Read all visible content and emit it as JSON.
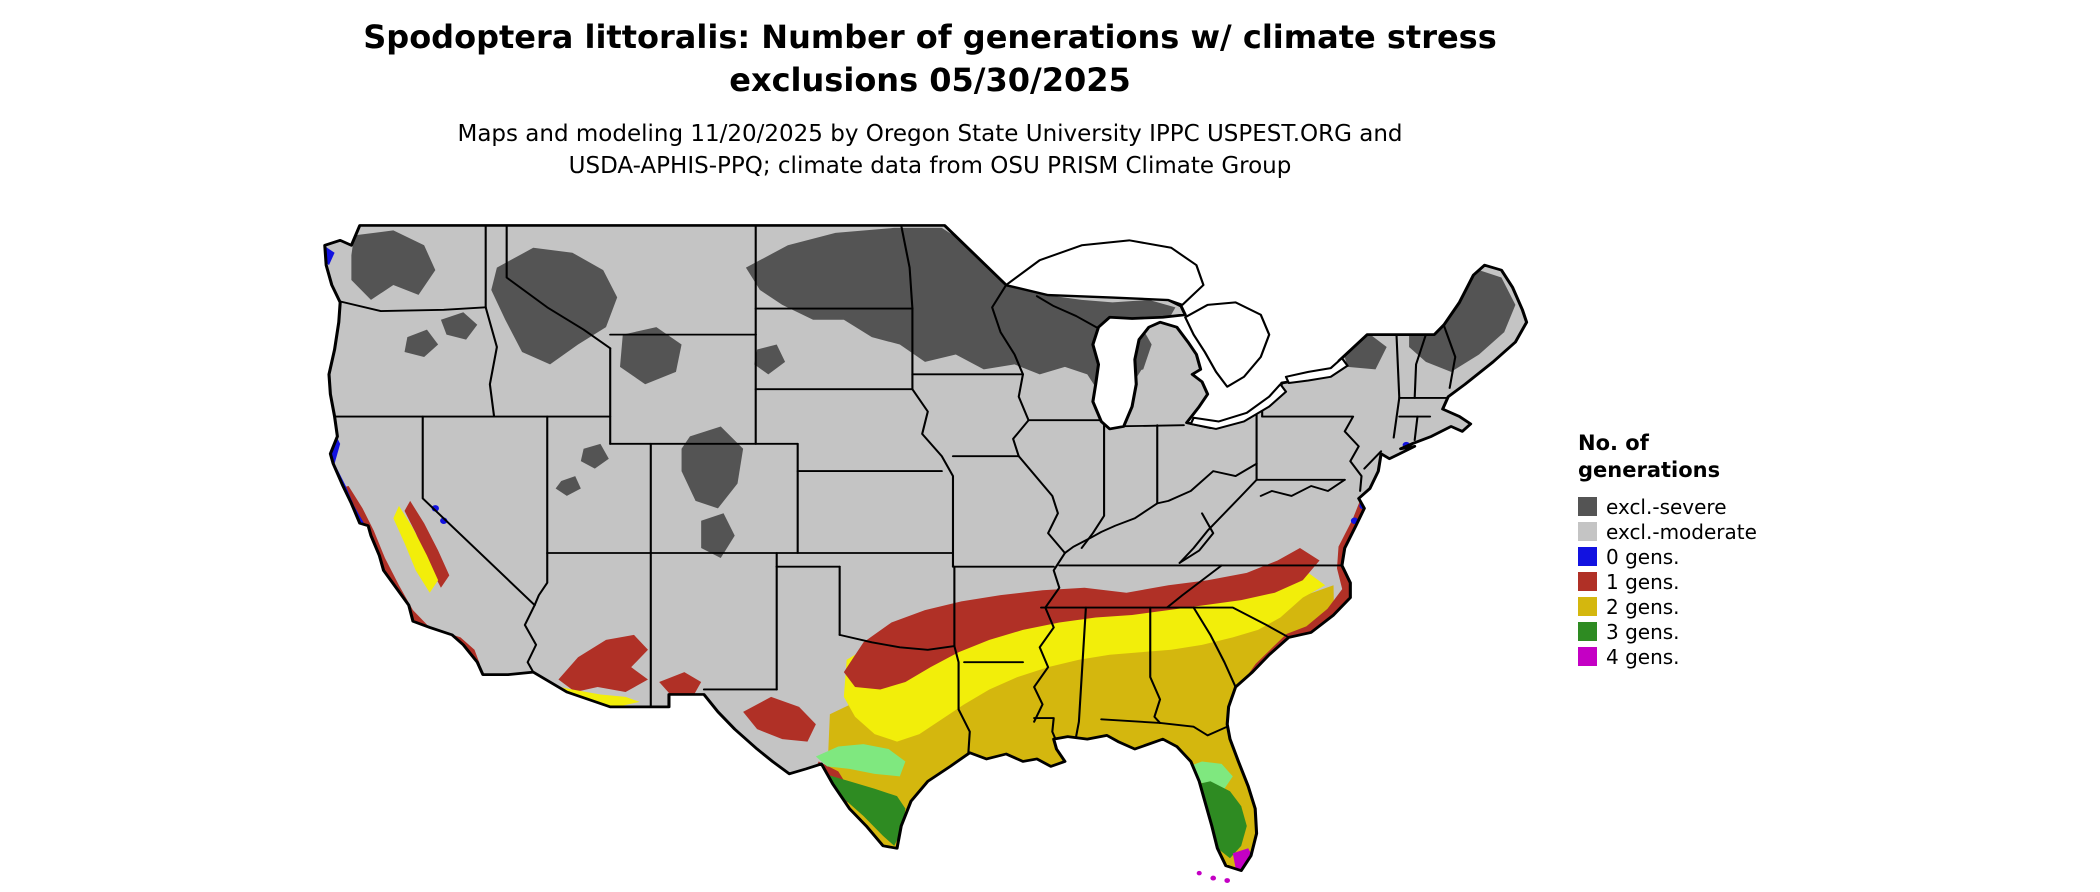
{
  "title": {
    "line1": "Spodoptera littoralis: Number of generations w/ climate stress",
    "line2": "exclusions 05/30/2025"
  },
  "subtitle": {
    "line1": "Maps and modeling 11/20/2025 by Oregon State University IPPC USPEST.ORG and",
    "line2": "USDA-APHIS-PPQ; climate data from OSU PRISM Climate Group"
  },
  "legend": {
    "title_line1": "No. of",
    "title_line2": "generations",
    "entries": [
      {
        "label": "excl.-severe",
        "color": "#545454"
      },
      {
        "label": "excl.-moderate",
        "color": "#c4c4c4"
      },
      {
        "label": "0 gens.",
        "color": "#1212e0"
      },
      {
        "label": "1 gens.",
        "color": "#b03026"
      },
      {
        "label": "2 gens.",
        "color": "#d4b70e"
      },
      {
        "label": "3 gens.",
        "color": "#2e8b22"
      },
      {
        "label": "4 gens.",
        "color": "#c400c4"
      }
    ]
  },
  "map_colors": {
    "bright_2gens": "#f2ee0a",
    "light_3gens": "#7fe87f",
    "water": "#ffffff",
    "state_border": "#000000",
    "outline": "#000000"
  }
}
